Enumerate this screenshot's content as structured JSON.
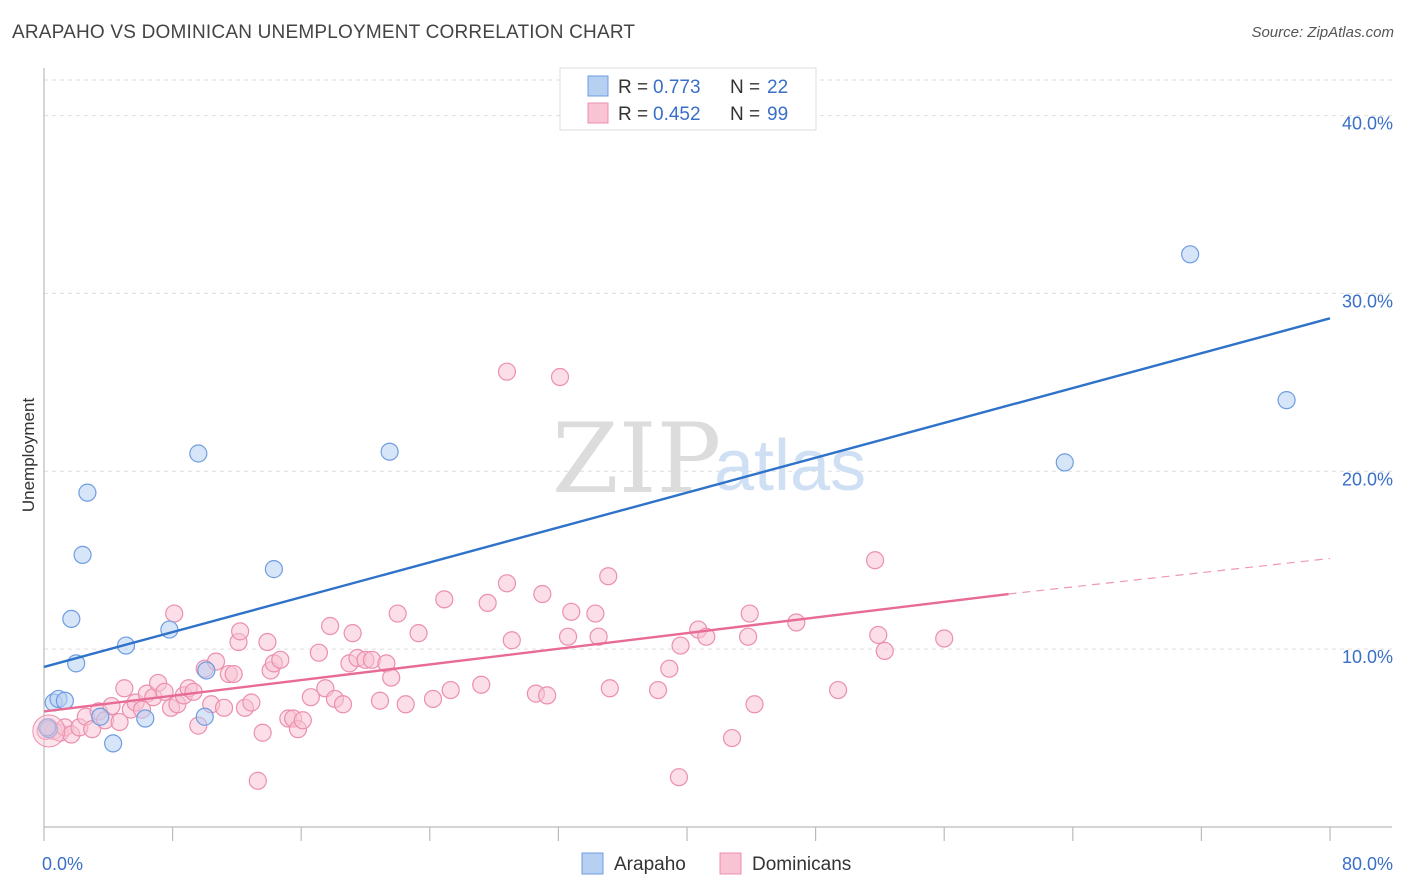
{
  "title": "ARAPAHO VS DOMINICAN UNEMPLOYMENT CORRELATION CHART",
  "source": "Source: ZipAtlas.com",
  "watermark": {
    "zip": "ZIP",
    "atlas": "atlas"
  },
  "legend": {
    "r_label": "R =",
    "n_label": "N =",
    "series": [
      {
        "name": "Arapaho",
        "r": "0.773",
        "n": "22"
      },
      {
        "name": "Dominicans",
        "r": "0.452",
        "n": "99"
      }
    ]
  },
  "colors": {
    "arapaho_fill": "#b6d0f2",
    "arapaho_stroke": "#6f9de0",
    "arapaho_line": "#2f72c9",
    "dominican_fill": "#f8c3d3",
    "dominican_stroke": "#ec8fae",
    "dominican_line": "#e86b96",
    "grid": "#dddddd",
    "axis": "#bbbbbb"
  },
  "chart_data": {
    "type": "scatter",
    "xlabel": "",
    "ylabel": "Unemployment",
    "xlim": [
      0,
      80
    ],
    "ylim": [
      0,
      42
    ],
    "x_ticks": [
      0,
      8,
      16,
      24,
      32,
      40,
      48,
      56,
      64,
      72,
      80
    ],
    "x_tick_labels": [
      {
        "value": 0,
        "label": "0.0%"
      },
      {
        "value": 80,
        "label": "80.0%"
      }
    ],
    "y_ticks": [
      {
        "value": 10,
        "label": "10.0%"
      },
      {
        "value": 20,
        "label": "20.0%"
      },
      {
        "value": 30,
        "label": "30.0%"
      },
      {
        "value": 40,
        "label": "40.0%"
      }
    ],
    "grid": true,
    "series": [
      {
        "name": "Arapaho",
        "points": [
          [
            0.3,
            5.5
          ],
          [
            0.6,
            7.0
          ],
          [
            0.9,
            7.2
          ],
          [
            1.3,
            7.1
          ],
          [
            1.7,
            11.7
          ],
          [
            2.0,
            9.2
          ],
          [
            2.4,
            15.3
          ],
          [
            2.7,
            18.8
          ],
          [
            3.5,
            6.2
          ],
          [
            4.3,
            4.7
          ],
          [
            5.1,
            10.2
          ],
          [
            6.3,
            6.1
          ],
          [
            7.8,
            11.1
          ],
          [
            9.6,
            21.0
          ],
          [
            10.1,
            8.8
          ],
          [
            10.0,
            6.2
          ],
          [
            14.3,
            14.5
          ],
          [
            21.5,
            21.1
          ],
          [
            63.5,
            20.5
          ],
          [
            71.3,
            32.2
          ],
          [
            77.3,
            24.0
          ],
          [
            0.2,
            5.6
          ]
        ],
        "trend": {
          "x0": 0,
          "y0": 9.0,
          "x1": 80,
          "y1": 28.6
        }
      },
      {
        "name": "Dominicans",
        "points": [
          [
            0.1,
            5.4
          ],
          [
            0.3,
            5.6
          ],
          [
            0.6,
            5.4
          ],
          [
            1.0,
            5.3
          ],
          [
            1.3,
            5.6
          ],
          [
            1.7,
            5.2
          ],
          [
            2.2,
            5.6
          ],
          [
            2.6,
            6.2
          ],
          [
            3.0,
            5.5
          ],
          [
            3.4,
            6.5
          ],
          [
            3.8,
            6.0
          ],
          [
            4.2,
            6.8
          ],
          [
            4.7,
            5.9
          ],
          [
            5.0,
            7.8
          ],
          [
            5.4,
            6.6
          ],
          [
            5.7,
            7.0
          ],
          [
            6.1,
            6.6
          ],
          [
            6.4,
            7.5
          ],
          [
            6.8,
            7.3
          ],
          [
            7.1,
            8.1
          ],
          [
            7.5,
            7.6
          ],
          [
            7.9,
            6.7
          ],
          [
            8.1,
            12.0
          ],
          [
            8.3,
            6.9
          ],
          [
            8.7,
            7.4
          ],
          [
            9.0,
            7.8
          ],
          [
            9.3,
            7.6
          ],
          [
            9.6,
            5.7
          ],
          [
            10.0,
            8.9
          ],
          [
            10.4,
            6.9
          ],
          [
            10.7,
            9.3
          ],
          [
            11.2,
            6.7
          ],
          [
            11.5,
            8.6
          ],
          [
            11.8,
            8.6
          ],
          [
            12.1,
            10.4
          ],
          [
            12.5,
            6.7
          ],
          [
            12.9,
            7.0
          ],
          [
            13.3,
            2.6
          ],
          [
            13.6,
            5.3
          ],
          [
            13.9,
            10.4
          ],
          [
            14.1,
            8.8
          ],
          [
            14.3,
            9.2
          ],
          [
            14.7,
            9.4
          ],
          [
            15.2,
            6.1
          ],
          [
            15.5,
            6.1
          ],
          [
            15.8,
            5.5
          ],
          [
            16.1,
            6.0
          ],
          [
            16.6,
            7.3
          ],
          [
            17.1,
            9.8
          ],
          [
            17.5,
            7.8
          ],
          [
            17.8,
            11.3
          ],
          [
            18.1,
            7.2
          ],
          [
            18.6,
            6.9
          ],
          [
            19.0,
            9.2
          ],
          [
            19.2,
            10.9
          ],
          [
            19.5,
            9.5
          ],
          [
            20.0,
            9.4
          ],
          [
            20.4,
            9.4
          ],
          [
            20.9,
            7.1
          ],
          [
            21.3,
            9.2
          ],
          [
            21.6,
            8.4
          ],
          [
            22.0,
            12.0
          ],
          [
            22.5,
            6.9
          ],
          [
            23.3,
            10.9
          ],
          [
            24.2,
            7.2
          ],
          [
            24.9,
            12.8
          ],
          [
            25.3,
            7.7
          ],
          [
            27.2,
            8.0
          ],
          [
            27.6,
            12.6
          ],
          [
            28.8,
            13.7
          ],
          [
            29.1,
            10.5
          ],
          [
            30.6,
            7.5
          ],
          [
            31.0,
            13.1
          ],
          [
            31.3,
            7.4
          ],
          [
            32.6,
            10.7
          ],
          [
            32.8,
            12.1
          ],
          [
            34.3,
            12.0
          ],
          [
            34.5,
            10.7
          ],
          [
            35.1,
            14.1
          ],
          [
            35.2,
            7.8
          ],
          [
            38.2,
            7.7
          ],
          [
            38.9,
            8.9
          ],
          [
            39.5,
            2.8
          ],
          [
            39.6,
            10.2
          ],
          [
            40.7,
            11.1
          ],
          [
            41.2,
            10.7
          ],
          [
            42.8,
            5.0
          ],
          [
            43.8,
            10.7
          ],
          [
            44.2,
            6.9
          ],
          [
            43.9,
            12.0
          ],
          [
            46.8,
            11.5
          ],
          [
            49.4,
            7.7
          ],
          [
            51.7,
            15.0
          ],
          [
            51.9,
            10.8
          ],
          [
            52.3,
            9.9
          ],
          [
            56.0,
            10.6
          ],
          [
            28.8,
            25.6
          ],
          [
            32.1,
            25.3
          ],
          [
            12.2,
            11.0
          ]
        ],
        "trend": {
          "x0": 0,
          "y0": 6.5,
          "x1": 60,
          "y1": 13.1
        },
        "trend_dashed": {
          "x0": 60,
          "y0": 13.1,
          "x1": 80,
          "y1": 15.1
        }
      }
    ]
  }
}
